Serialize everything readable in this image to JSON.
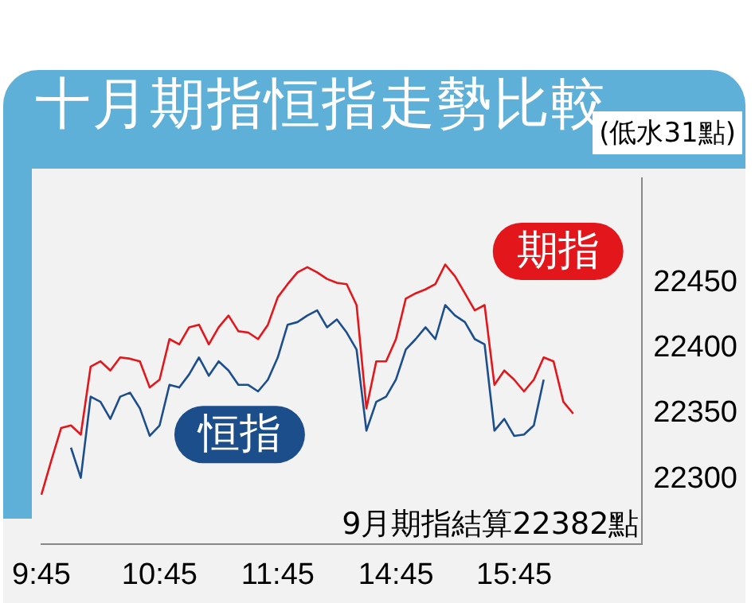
{
  "chart_data": {
    "type": "line",
    "title": "十月期指恒指走勢比較",
    "subtitle": "(低水31點)",
    "annotations": [
      "9月期指結算22382點"
    ],
    "categories": [
      "9:45",
      null,
      null,
      null,
      null,
      null,
      null,
      null,
      null,
      null,
      null,
      null,
      "10:45",
      null,
      null,
      null,
      null,
      null,
      null,
      null,
      null,
      null,
      null,
      null,
      "11:45",
      null,
      null,
      null,
      null,
      null,
      null,
      null,
      null,
      null,
      null,
      null,
      "14:45",
      null,
      null,
      null,
      null,
      null,
      null,
      null,
      null,
      null,
      null,
      null,
      "15:45",
      null,
      null,
      null,
      null,
      null,
      null,
      null,
      null,
      null,
      null,
      null,
      null,
      null
    ],
    "series": [
      {
        "name": "期指",
        "color": "#e3161c",
        "values": [
          22288,
          22314,
          22339,
          22341,
          22334,
          22386,
          22390,
          22383,
          22393,
          22392,
          22390,
          22370,
          22376,
          22407,
          22403,
          22416,
          22418,
          22403,
          22416,
          22425,
          22413,
          22412,
          22407,
          22418,
          22439,
          22449,
          22458,
          22462,
          22458,
          22453,
          22450,
          22449,
          22433,
          22354,
          22390,
          22390,
          22407,
          22438,
          22442,
          22445,
          22449,
          22464,
          22455,
          22442,
          22429,
          22433,
          22372,
          22383,
          22376,
          22367,
          22376,
          22393,
          22390,
          22359,
          22350,
          null,
          null,
          null,
          null,
          null,
          null,
          null
        ]
      },
      {
        "name": "恒指",
        "color": "#1d4e8c",
        "values": [
          null,
          null,
          null,
          22324,
          22301,
          22363,
          22359,
          22346,
          22363,
          22366,
          22354,
          22333,
          22341,
          22372,
          22370,
          22380,
          22393,
          22379,
          22390,
          22383,
          22372,
          22372,
          22367,
          22376,
          22393,
          22418,
          22420,
          22425,
          22429,
          22416,
          22422,
          22412,
          22399,
          22337,
          22359,
          22363,
          22376,
          22399,
          22407,
          22416,
          22407,
          22433,
          22425,
          22420,
          22407,
          22403,
          22337,
          22346,
          22333,
          22334,
          22341,
          22376,
          null,
          null,
          null,
          null,
          null,
          null,
          null,
          null,
          null,
          null
        ]
      }
    ],
    "ylim": [
      22250,
      22530
    ],
    "yticks": [
      22300,
      22350,
      22400,
      22450
    ],
    "grid": false,
    "marker": "none",
    "line_style": "solid"
  }
}
